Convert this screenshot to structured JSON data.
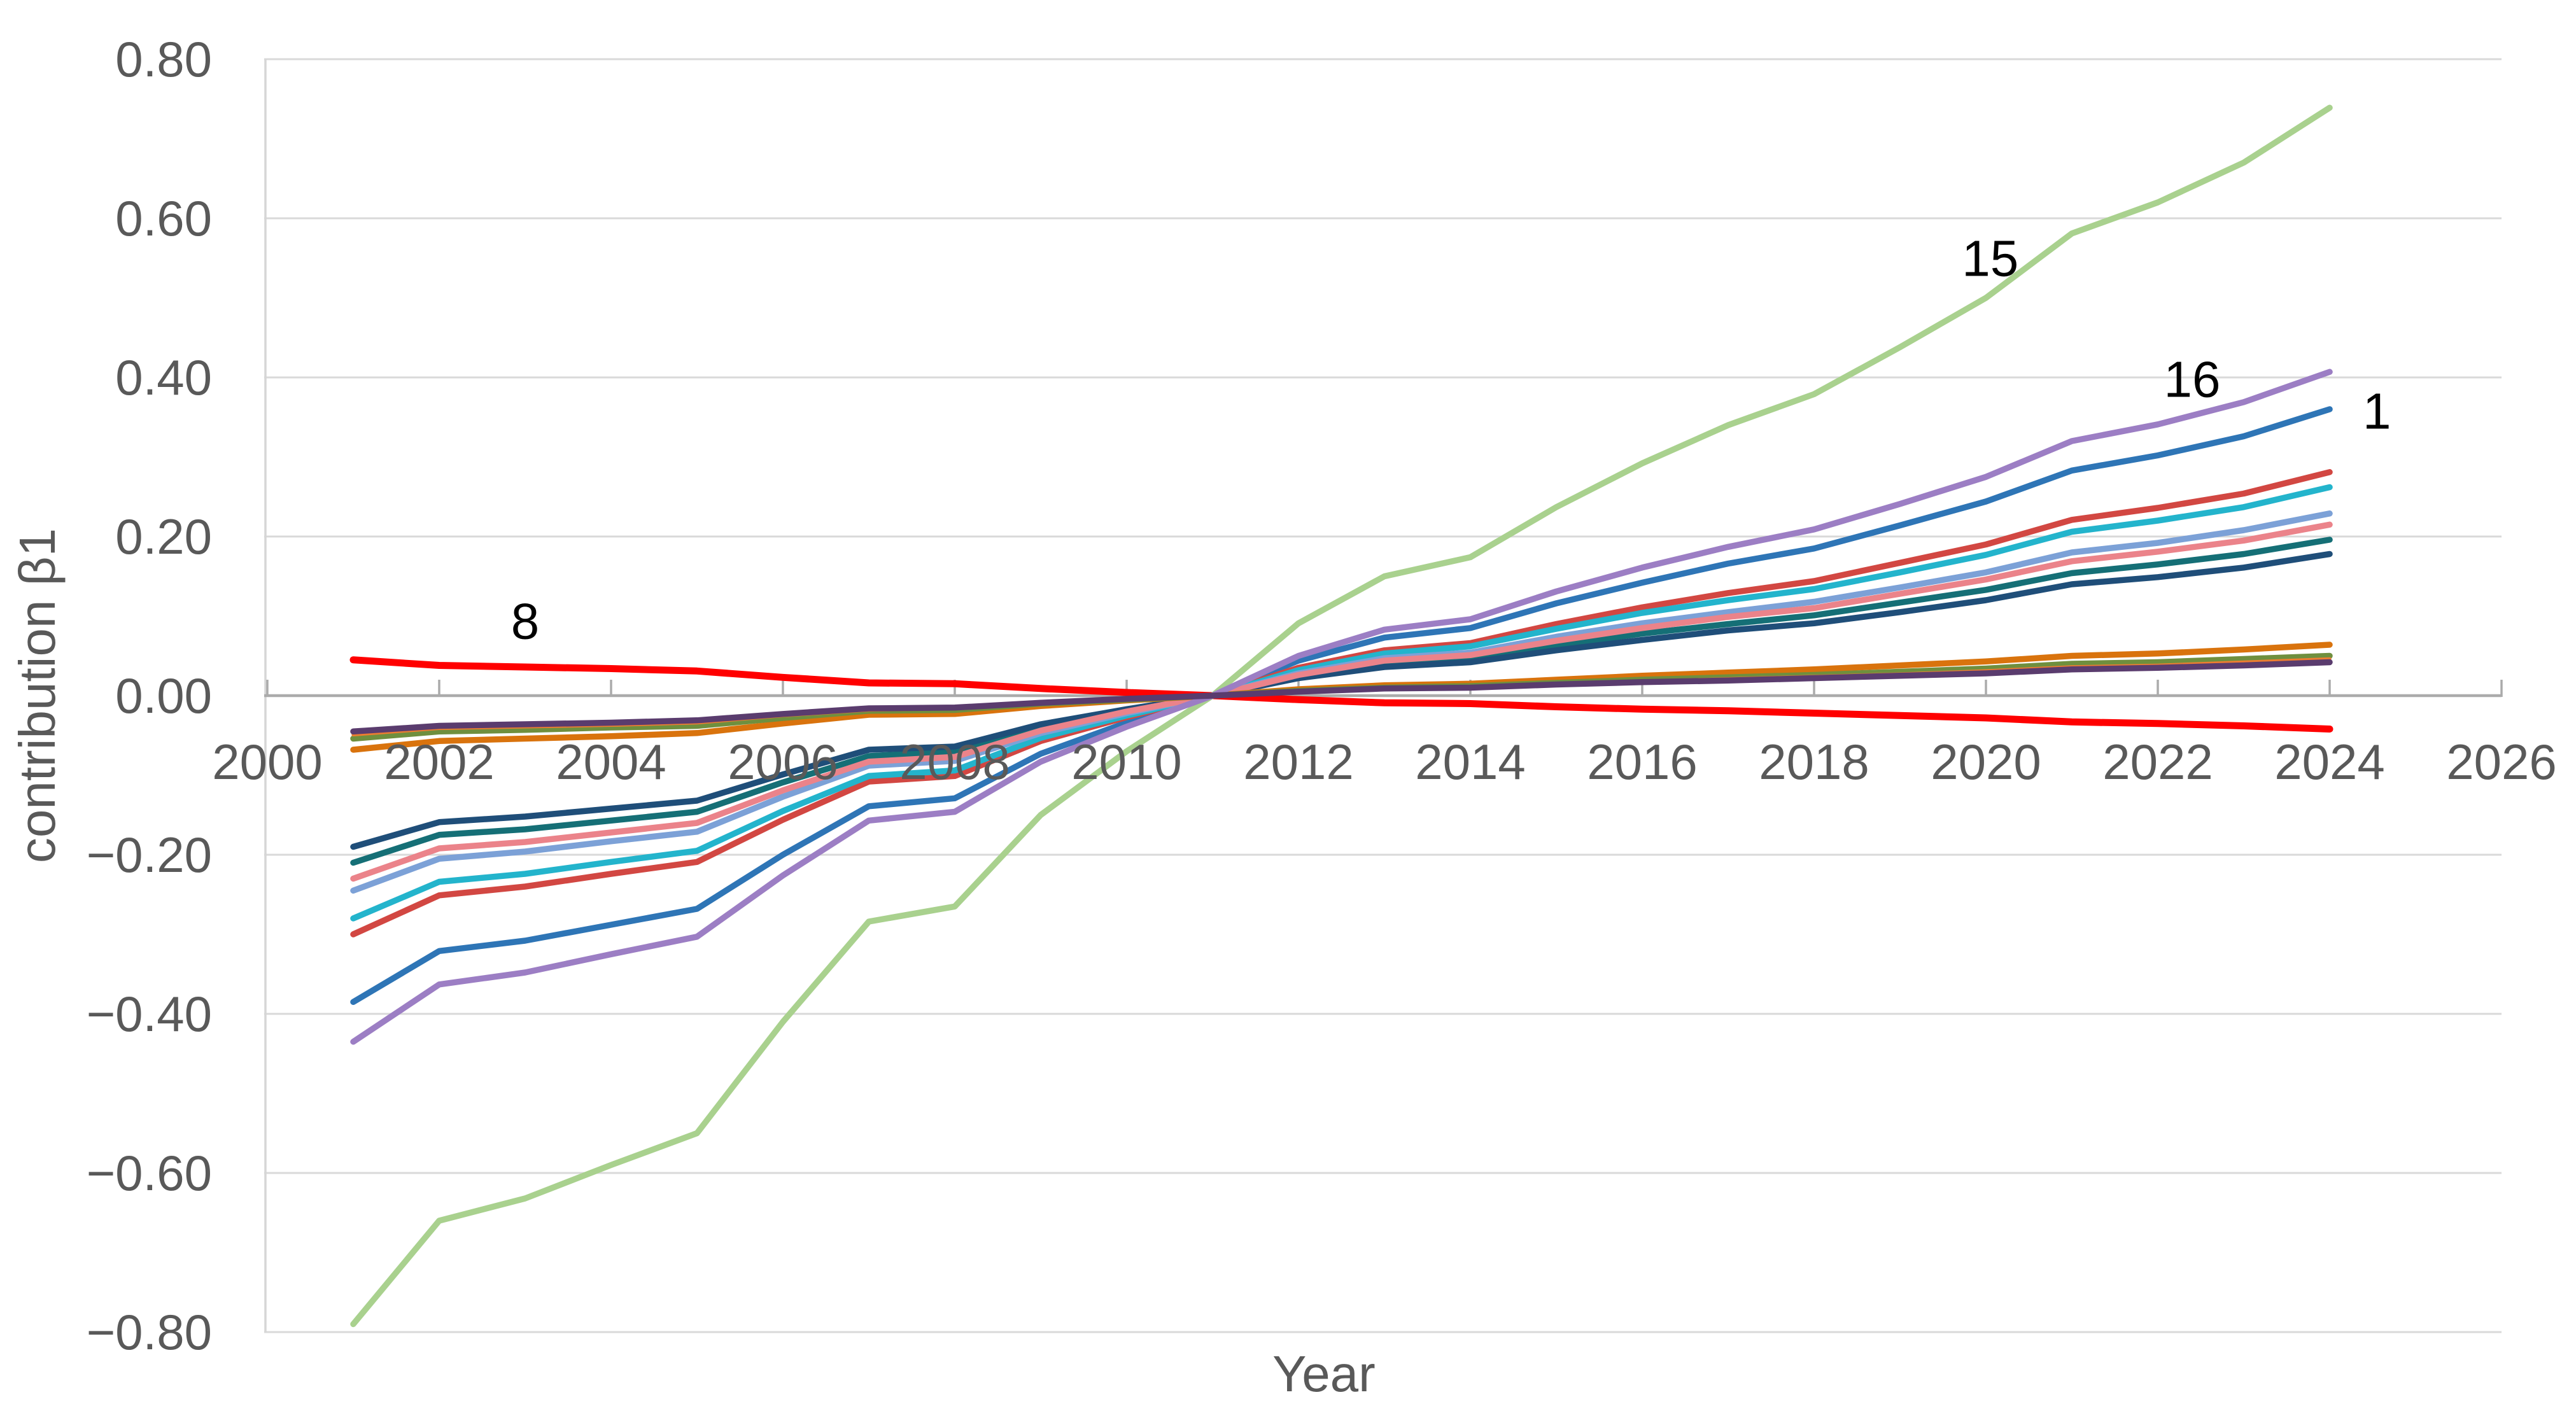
{
  "chart_data": {
    "type": "line",
    "title": "",
    "xlabel": "Year",
    "ylabel": "contribution β1",
    "x": [
      2001,
      2002,
      2003,
      2004,
      2005,
      2006,
      2007,
      2008,
      2009,
      2010,
      2011,
      2012,
      2013,
      2014,
      2015,
      2016,
      2017,
      2018,
      2019,
      2020,
      2021,
      2022,
      2023,
      2024
    ],
    "xlim": [
      2000,
      2026
    ],
    "ylim": [
      -0.8,
      0.8
    ],
    "y_tick_step": 0.2,
    "x_tick_step": 2,
    "grid": "horizontal gridlines every 0.20, x-axis drawn at y=0, year labels below the zero axis inside the plot",
    "legend": "none — series identified by inline number annotations",
    "x_tick_labels": [
      "2000",
      "2002",
      "2004",
      "2006",
      "2008",
      "2010",
      "2012",
      "2014",
      "2016",
      "2018",
      "2020",
      "2022",
      "2024",
      "2026"
    ],
    "x_tick_years": [
      2000,
      2002,
      2004,
      2006,
      2008,
      2010,
      2012,
      2014,
      2016,
      2018,
      2020,
      2022,
      2024,
      2026
    ],
    "y_tick_labels": [
      "0.80",
      "0.60",
      "0.40",
      "0.20",
      "0.00",
      "−0.20",
      "−0.40",
      "−0.60",
      "−0.80"
    ],
    "y_tick_values": [
      0.8,
      0.6,
      0.4,
      0.2,
      0.0,
      -0.2,
      -0.4,
      -0.6,
      -0.8
    ],
    "series": [
      {
        "name": "series-1",
        "label": "1",
        "color": "#2E75B6",
        "stroke_width": 9.5,
        "values": [
          -0.385,
          -0.321,
          -0.308,
          -0.288,
          -0.268,
          -0.2,
          -0.139,
          -0.129,
          -0.073,
          -0.034,
          0,
          0.044,
          0.073,
          0.085,
          0.116,
          0.142,
          0.166,
          0.185,
          0.214,
          0.244,
          0.283,
          0.302,
          0.326,
          0.36
        ]
      },
      {
        "name": "series-red",
        "label": "",
        "color": "#D24742",
        "stroke_width": 9.5,
        "values": [
          -0.3,
          -0.251,
          -0.24,
          -0.224,
          -0.209,
          -0.156,
          -0.108,
          -0.101,
          -0.057,
          -0.027,
          0,
          0.035,
          0.057,
          0.066,
          0.09,
          0.111,
          0.129,
          0.144,
          0.167,
          0.19,
          0.221,
          0.236,
          0.254,
          0.281
        ]
      },
      {
        "name": "series-cyan",
        "label": "",
        "color": "#23B4CC",
        "stroke_width": 9.5,
        "values": [
          -0.28,
          -0.234,
          -0.224,
          -0.209,
          -0.195,
          -0.145,
          -0.101,
          -0.094,
          -0.053,
          -0.025,
          0,
          0.032,
          0.053,
          0.062,
          0.084,
          0.104,
          0.12,
          0.134,
          0.155,
          0.177,
          0.206,
          0.22,
          0.237,
          0.262
        ]
      },
      {
        "name": "series-lightblue",
        "label": "",
        "color": "#7CA1D7",
        "stroke_width": 9.5,
        "values": [
          -0.245,
          -0.205,
          -0.196,
          -0.183,
          -0.171,
          -0.127,
          -0.088,
          -0.082,
          -0.047,
          -0.022,
          0,
          0.028,
          0.047,
          0.054,
          0.074,
          0.091,
          0.105,
          0.118,
          0.136,
          0.155,
          0.18,
          0.192,
          0.208,
          0.229
        ]
      },
      {
        "name": "series-teal",
        "label": "",
        "color": "#156F76",
        "stroke_width": 9.5,
        "values": [
          -0.21,
          -0.175,
          -0.168,
          -0.157,
          -0.146,
          -0.109,
          -0.076,
          -0.07,
          -0.04,
          -0.019,
          0,
          0.024,
          0.04,
          0.046,
          0.063,
          0.078,
          0.09,
          0.101,
          0.117,
          0.133,
          0.154,
          0.165,
          0.178,
          0.196
        ]
      },
      {
        "name": "series-navy",
        "label": "",
        "color": "#1F4E79",
        "stroke_width": 9.5,
        "values": [
          -0.19,
          -0.159,
          -0.152,
          -0.142,
          -0.132,
          -0.099,
          -0.068,
          -0.064,
          -0.036,
          -0.017,
          0,
          0.022,
          0.036,
          0.042,
          0.057,
          0.07,
          0.082,
          0.091,
          0.105,
          0.12,
          0.14,
          0.149,
          0.161,
          0.178
        ]
      },
      {
        "name": "series-salmon",
        "label": "",
        "color": "#EB838A",
        "stroke_width": 9.5,
        "values": [
          -0.23,
          -0.192,
          -0.184,
          -0.172,
          -0.16,
          -0.119,
          -0.083,
          -0.077,
          -0.044,
          -0.02,
          0,
          0.026,
          0.044,
          0.051,
          0.069,
          0.085,
          0.099,
          0.11,
          0.128,
          0.146,
          0.169,
          0.181,
          0.195,
          0.215
        ]
      },
      {
        "name": "series-8",
        "label": "8",
        "color": "#FF0000",
        "stroke_width": 11,
        "values": [
          0.045,
          0.038,
          0.036,
          0.034,
          0.031,
          0.023,
          0.016,
          0.015,
          0.009,
          0.004,
          0,
          -0.005,
          -0.009,
          -0.01,
          -0.014,
          -0.017,
          -0.019,
          -0.022,
          -0.025,
          -0.028,
          -0.033,
          -0.035,
          -0.038,
          -0.042
        ]
      },
      {
        "name": "series-orange",
        "label": "",
        "color": "#D9730D",
        "stroke_width": 9.5,
        "values": [
          -0.068,
          -0.057,
          -0.054,
          -0.051,
          -0.047,
          -0.035,
          -0.024,
          -0.023,
          -0.013,
          -0.006,
          0,
          0.008,
          0.013,
          0.015,
          0.02,
          0.025,
          0.029,
          0.033,
          0.038,
          0.043,
          0.05,
          0.053,
          0.058,
          0.064
        ]
      },
      {
        "name": "series-olive",
        "label": "",
        "color": "#6F8F3E",
        "stroke_width": 9.5,
        "values": [
          -0.054,
          -0.045,
          -0.043,
          -0.04,
          -0.038,
          -0.028,
          -0.019,
          -0.018,
          -0.01,
          -0.005,
          0,
          0.006,
          0.01,
          0.012,
          0.016,
          0.02,
          0.023,
          0.026,
          0.03,
          0.034,
          0.04,
          0.042,
          0.046,
          0.05
        ]
      },
      {
        "name": "series-thin-orange",
        "label": "",
        "color": "#ED7D31",
        "stroke_width": 5.5,
        "values": [
          -0.049,
          -0.041,
          -0.039,
          -0.037,
          -0.034,
          -0.025,
          -0.018,
          -0.016,
          -0.009,
          -0.004,
          0,
          0.006,
          0.009,
          0.011,
          0.015,
          0.018,
          0.021,
          0.024,
          0.027,
          0.031,
          0.036,
          0.038,
          0.042,
          0.046
        ]
      },
      {
        "name": "series-15",
        "label": "15",
        "color": "#A9D18E",
        "stroke_width": 9.5,
        "values": [
          -0.79,
          -0.66,
          -0.632,
          -0.59,
          -0.55,
          -0.41,
          -0.284,
          -0.265,
          -0.15,
          -0.07,
          0,
          0.091,
          0.15,
          0.174,
          0.237,
          0.292,
          0.34,
          0.379,
          0.438,
          0.5,
          0.581,
          0.62,
          0.67,
          0.739
        ]
      },
      {
        "name": "series-16",
        "label": "16",
        "color": "#9C7EC4",
        "stroke_width": 9.5,
        "values": [
          -0.435,
          -0.363,
          -0.348,
          -0.325,
          -0.303,
          -0.226,
          -0.157,
          -0.146,
          -0.083,
          -0.039,
          0,
          0.05,
          0.083,
          0.096,
          0.131,
          0.161,
          0.187,
          0.209,
          0.241,
          0.275,
          0.32,
          0.341,
          0.369,
          0.407
        ]
      },
      {
        "name": "series-dark-purple",
        "label": "",
        "color": "#5A3C6E",
        "stroke_width": 9.5,
        "values": [
          -0.045,
          -0.038,
          -0.036,
          -0.034,
          -0.031,
          -0.023,
          -0.016,
          -0.015,
          -0.009,
          -0.004,
          0,
          0.005,
          0.009,
          0.01,
          0.014,
          0.017,
          0.019,
          0.022,
          0.025,
          0.028,
          0.033,
          0.035,
          0.038,
          0.042
        ]
      }
    ],
    "annotations": [
      {
        "text": "8",
        "x": 2003.0,
        "y": 0.094
      },
      {
        "text": "15",
        "x": 2020.05,
        "y": 0.55
      },
      {
        "text": "16",
        "x": 2022.4,
        "y": 0.398
      },
      {
        "text": "1",
        "x": 2024.55,
        "y": 0.358
      }
    ]
  },
  "colors": {
    "background": "#FFFFFF",
    "gridline": "#D9D9D9",
    "axis_line": "#ABABAB",
    "y_axis_line": "#D6D6D6",
    "tick_mark": "#ABABAB",
    "tick_text": "#595959",
    "axis_title_text": "#595959",
    "annotation_text": "#000000"
  }
}
